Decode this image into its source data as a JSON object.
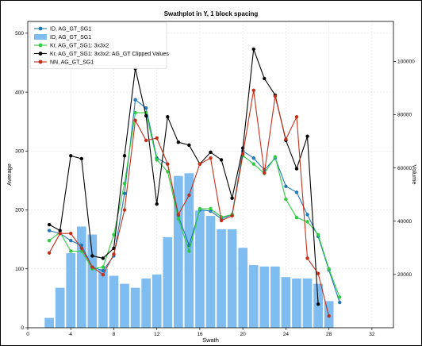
{
  "chart_data": {
    "type": "line",
    "title": "Swathplot in Y, 1 block spacing",
    "xlabel": "Swath",
    "ylabel": "Average",
    "y2label": "Volume",
    "xlim": [
      0,
      34
    ],
    "ylim": [
      0,
      520
    ],
    "y2lim": [
      0,
      115000
    ],
    "xticks": [
      0,
      4,
      8,
      12,
      16,
      20,
      24,
      28,
      32
    ],
    "yticks": [
      0,
      100,
      200,
      300,
      400,
      500
    ],
    "y2ticks": [
      20000,
      40000,
      60000,
      80000,
      100000
    ],
    "grid": true,
    "legend_position": "top-left",
    "colors": {
      "id": "#1f77b4",
      "id_bar": "#7fbcf0",
      "kr": "#2ecc40",
      "kr_clipped": "#000000",
      "nn": "#c0301a"
    },
    "volume_bars": {
      "name": "ID, AG_GT_SG1",
      "axis": "right",
      "x": [
        2,
        3,
        4,
        5,
        6,
        7,
        8,
        9,
        10,
        11,
        12,
        13,
        14,
        15,
        16,
        17,
        18,
        19,
        20,
        21,
        22,
        23,
        24,
        25,
        26,
        27,
        28
      ],
      "values": [
        3700,
        15000,
        28000,
        38000,
        35000,
        22000,
        19500,
        16500,
        15000,
        18500,
        20000,
        34000,
        57000,
        58000,
        44000,
        42000,
        37000,
        37000,
        30000,
        23500,
        23000,
        23000,
        19000,
        18500,
        18500,
        16500,
        10000
      ]
    },
    "series": [
      {
        "name": "ID, AG_GT_SG1",
        "color": "#1f77b4",
        "x": [
          2,
          3,
          4,
          5,
          6,
          7,
          8,
          9,
          10,
          11,
          12,
          13,
          14,
          15,
          16,
          17,
          18,
          19,
          20,
          21,
          22,
          23,
          24,
          25,
          26,
          27,
          28,
          29
        ],
        "values": [
          165,
          160,
          148,
          140,
          103,
          97,
          122,
          228,
          387,
          373,
          288,
          278,
          190,
          140,
          200,
          198,
          185,
          192,
          300,
          288,
          268,
          288,
          240,
          230,
          192,
          155,
          98,
          43
        ]
      },
      {
        "name": "Kr, AG_GT_SG1: 3x3x2",
        "color": "#2ecc40",
        "x": [
          2,
          3,
          4,
          5,
          6,
          7,
          8,
          9,
          10,
          11,
          12,
          13,
          14,
          15,
          16,
          17,
          18,
          19,
          20,
          21,
          22,
          23,
          24,
          25,
          26,
          27,
          28,
          29
        ],
        "values": [
          148,
          162,
          130,
          130,
          100,
          103,
          158,
          245,
          365,
          365,
          285,
          265,
          185,
          130,
          202,
          202,
          188,
          192,
          292,
          278,
          262,
          290,
          218,
          187,
          180,
          158,
          100,
          52
        ]
      },
      {
        "name": "Kr, AG_GT_SG1: 3x3x2: AG_GT Clipped Values",
        "color": "#000000",
        "x": [
          2,
          3,
          4,
          5,
          6,
          7,
          8,
          9,
          10,
          11,
          12,
          13,
          14,
          15,
          16,
          17,
          18,
          19,
          20,
          21,
          22,
          23,
          24,
          25,
          26,
          27
        ],
        "values": [
          175,
          165,
          292,
          287,
          122,
          118,
          135,
          292,
          440,
          360,
          210,
          358,
          315,
          310,
          278,
          298,
          285,
          220,
          305,
          473,
          423,
          395,
          318,
          270,
          325,
          40
        ]
      },
      {
        "name": "NN, AG_GT_SG1",
        "color": "#c0301a",
        "x": [
          2,
          3,
          4,
          5,
          6,
          7,
          8,
          9,
          10,
          11,
          12,
          13,
          14,
          15,
          16,
          17,
          18,
          19,
          20,
          21,
          22,
          23,
          24,
          25,
          26,
          27,
          28
        ],
        "values": [
          127,
          160,
          160,
          135,
          103,
          90,
          125,
          200,
          352,
          318,
          322,
          278,
          192,
          225,
          278,
          288,
          182,
          190,
          295,
          403,
          263,
          393,
          320,
          358,
          118,
          92,
          20
        ]
      }
    ],
    "legend": [
      {
        "label": "ID, AG_GT_SG1",
        "kind": "line-marker",
        "color": "#1f77b4"
      },
      {
        "label": "ID, AG_GT_SG1",
        "kind": "patch",
        "color": "#7fbcf0"
      },
      {
        "label": "Kr, AG_GT_SG1: 3x3x2",
        "kind": "line-marker",
        "color": "#2ecc40"
      },
      {
        "label": "Kr, AG_GT_SG1: 3x3x2: AG_GT Clipped Values",
        "kind": "line-marker",
        "color": "#000000"
      },
      {
        "label": "NN, AG_GT_SG1",
        "kind": "line-marker",
        "color": "#c0301a"
      }
    ]
  }
}
